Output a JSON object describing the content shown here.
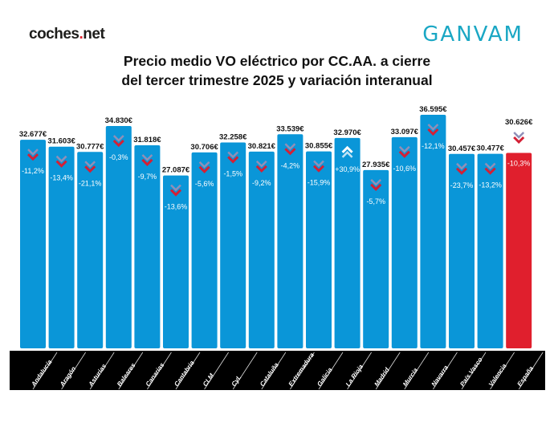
{
  "logos": {
    "left_brand": "coches",
    "left_dot": ".",
    "left_tld": "net",
    "right_brand": "GANVAM"
  },
  "chart_data": {
    "type": "bar",
    "title_line1": "Precio medio VO eléctrico por CC.AA. a cierre",
    "title_line2": "del tercer trimestre 2025 y variación interanual",
    "categories": [
      "Andalucía",
      "Aragón",
      "Asturias",
      "Baleares",
      "Canarias",
      "Cantabria",
      "CLM",
      "CyL",
      "Cataluña",
      "Extremadura",
      "Galicia",
      "La Rioja",
      "Madrid",
      "Murcia",
      "Navarra",
      "País Vasco",
      "Valencia",
      "España"
    ],
    "values": [
      32677,
      31603,
      30777,
      34830,
      31818,
      27087,
      30706,
      32258,
      30821,
      33539,
      30855,
      32970,
      27935,
      33097,
      36595,
      30457,
      30477,
      30626
    ],
    "value_labels": [
      "32.677€",
      "31.603€",
      "30.777€",
      "34.830€",
      "31.818€",
      "27.087€",
      "30.706€",
      "32.258€",
      "30.821€",
      "33.539€",
      "30.855€",
      "32.970€",
      "27.935€",
      "33.097€",
      "36.595€",
      "30.457€",
      "30.477€",
      "30.626€"
    ],
    "variation_labels": [
      "-11,2%",
      "-13,4%",
      "-21,1%",
      "-0,3%",
      "-9,7%",
      "-13,6%",
      "-5,6%",
      "-1,5%",
      "-9,2%",
      "-4,2%",
      "-15,9%",
      "+30,9%",
      "-5,7%",
      "-10,6%",
      "-12,1%",
      "-23,7%",
      "-13,2%",
      "-10,3%"
    ],
    "variation_direction": [
      "down",
      "down",
      "down",
      "down",
      "down",
      "down",
      "down",
      "down",
      "down",
      "down",
      "down",
      "up",
      "down",
      "down",
      "down",
      "down",
      "down",
      "down"
    ],
    "unit": "€",
    "ylim": [
      0,
      36595
    ],
    "grid": false,
    "colors": {
      "region_bar": "#0a96d8",
      "national_bar": "#e01f2d",
      "down_arrow": "#d42035",
      "up_arrow": "#ffffff",
      "label_band": "#000000"
    }
  }
}
